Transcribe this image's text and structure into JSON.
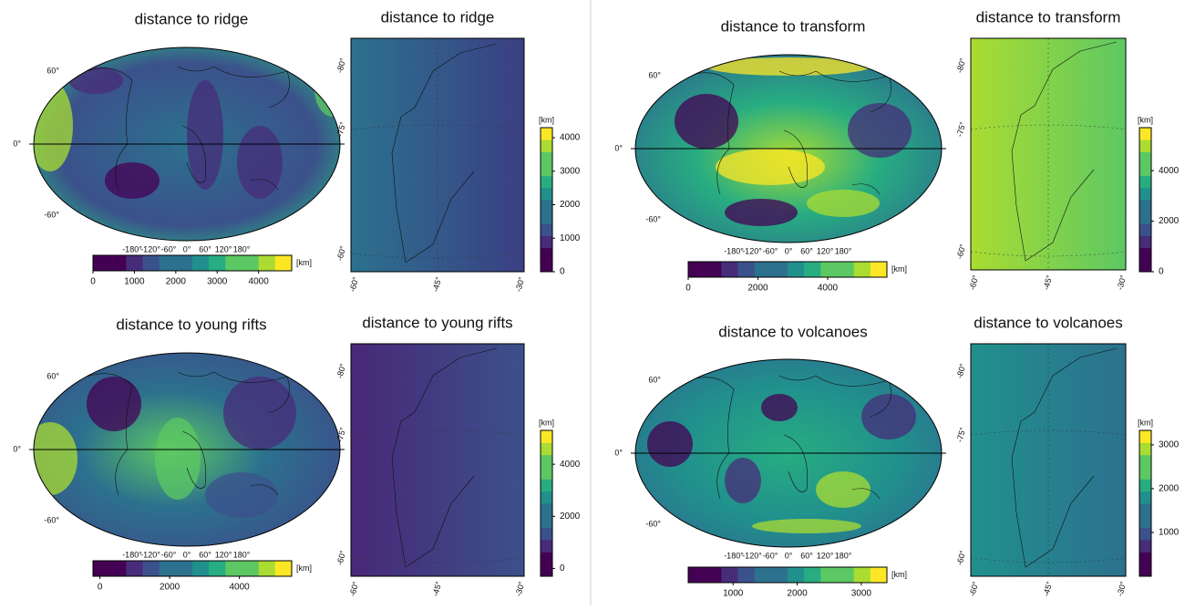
{
  "panels": [
    {
      "global": {
        "title": "distance to ridge",
        "lat_labels": [
          "60°",
          "0°",
          "-60°"
        ],
        "lon_labels": [
          "-180°",
          "-120°",
          "-60°",
          "0°",
          "60°",
          "120°",
          "180°"
        ],
        "colorbar": {
          "unit": "[km]",
          "lim": [
            0,
            4800
          ],
          "ticks": [
            0,
            1000,
            2000,
            3000,
            4000
          ]
        }
      },
      "regional": {
        "title": "distance to ridge",
        "left_labels": [
          "-80°",
          "-75°",
          "-60°"
        ],
        "bottom_labels": [
          "-60°",
          "-45°",
          "-30°"
        ],
        "colorbar": {
          "unit": "[km]",
          "lim": [
            0,
            4300
          ],
          "ticks": [
            0,
            1000,
            2000,
            3000,
            4000
          ]
        }
      }
    },
    {
      "global": {
        "title": "distance to transform",
        "lat_labels": [
          "60°",
          "0°",
          "-60°"
        ],
        "lon_labels": [
          "-180°",
          "-120°",
          "-60°",
          "0°",
          "60°",
          "120°",
          "180°"
        ],
        "colorbar": {
          "unit": "[km]",
          "lim": [
            0,
            5700
          ],
          "ticks": [
            0,
            2000,
            4000
          ]
        }
      },
      "regional": {
        "title": "distance to transform",
        "left_labels": [
          "-80°",
          "-75°",
          "-60°"
        ],
        "bottom_labels": [
          "-60°",
          "-45°",
          "-30°"
        ],
        "colorbar": {
          "unit": "[km]",
          "lim": [
            0,
            5700
          ],
          "ticks": [
            0,
            2000,
            4000
          ]
        }
      }
    },
    {
      "global": {
        "title": "distance to young rifts",
        "lat_labels": [
          "60°",
          "0°",
          "-60°"
        ],
        "lon_labels": [
          "-180°",
          "-120°",
          "-60°",
          "0°",
          "60°",
          "120°",
          "180°"
        ],
        "colorbar": {
          "unit": "[km]",
          "lim": [
            -200,
            5500
          ],
          "ticks": [
            0,
            2000,
            4000
          ]
        }
      },
      "regional": {
        "title": "distance to young rifts",
        "left_labels": [
          "-80°",
          "-75°",
          "-60°"
        ],
        "bottom_labels": [
          "-60°",
          "-45°",
          "-30°"
        ],
        "colorbar": {
          "unit": "[km]",
          "lim": [
            -300,
            5300
          ],
          "ticks": [
            0,
            2000,
            4000
          ]
        }
      }
    },
    {
      "global": {
        "title": "distance to volcanoes",
        "lat_labels": [
          "60°",
          "0°",
          "-60°"
        ],
        "lon_labels": [
          "-180°",
          "-120°",
          "-60°",
          "0°",
          "60°",
          "120°",
          "180°"
        ],
        "colorbar": {
          "unit": "[km]",
          "lim": [
            300,
            3400
          ],
          "ticks": [
            1000,
            2000,
            3000
          ]
        }
      },
      "regional": {
        "title": "distance to volcanoes",
        "left_labels": [
          "-80°",
          "-75°",
          "-60°"
        ],
        "bottom_labels": [
          "-60°",
          "-45°",
          "-30°"
        ],
        "colorbar": {
          "unit": "[km]",
          "lim": [
            0,
            3330
          ],
          "ticks": [
            1000,
            2000,
            3000
          ]
        }
      }
    }
  ]
}
